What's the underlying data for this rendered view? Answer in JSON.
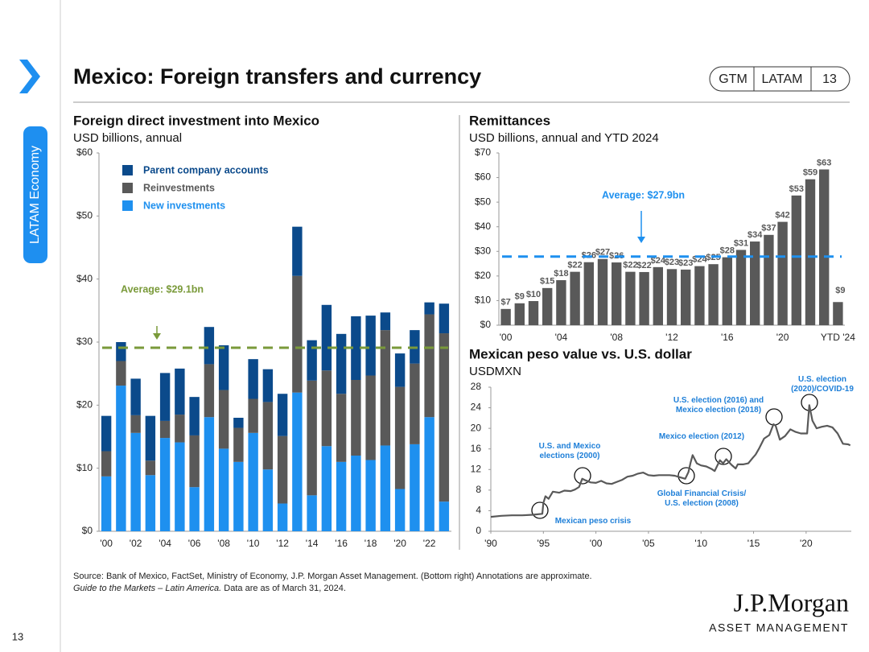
{
  "header": {
    "title": "Mexico: Foreign transfers and currency",
    "badges": [
      "GTM",
      "LATAM",
      "13"
    ]
  },
  "sidebar": {
    "section": "LATAM Economy",
    "page": "13"
  },
  "chart_data": [
    {
      "type": "bar",
      "stacked": true,
      "title": "Foreign direct investment into Mexico",
      "subtitle": "USD billions, annual",
      "categories": [
        "'00",
        null,
        "'02",
        null,
        "'04",
        null,
        "'06",
        null,
        "'08",
        null,
        "'10",
        null,
        "'12",
        null,
        "'14",
        null,
        "'16",
        null,
        "'18",
        null,
        "'20",
        null,
        "'22",
        null
      ],
      "series": [
        {
          "name": "New investments",
          "color": "#1e90ef",
          "values": [
            8.7,
            23.1,
            15.6,
            8.9,
            14.8,
            14.1,
            7.0,
            18.1,
            13.1,
            11.0,
            15.6,
            9.8,
            4.4,
            22.0,
            5.7,
            13.5,
            11.0,
            12.0,
            11.3,
            13.6,
            6.7,
            13.8,
            18.1,
            4.7
          ]
        },
        {
          "name": "Reinvestments",
          "color": "#595959",
          "values": [
            4.0,
            3.9,
            2.8,
            2.3,
            2.7,
            4.4,
            8.2,
            8.4,
            9.3,
            5.4,
            5.4,
            10.7,
            10.7,
            18.5,
            18.2,
            12.0,
            10.8,
            12.0,
            13.4,
            18.3,
            16.2,
            12.8,
            16.3,
            26.7
          ]
        },
        {
          "name": "Parent company accounts",
          "color": "#0b4a8b",
          "values": [
            5.6,
            3.0,
            5.8,
            7.1,
            7.6,
            7.3,
            6.1,
            5.9,
            7.1,
            1.6,
            6.3,
            5.2,
            6.7,
            7.8,
            6.4,
            10.4,
            9.5,
            10.1,
            9.5,
            2.8,
            5.3,
            5.3,
            1.9,
            4.7
          ]
        }
      ],
      "ylim": [
        0,
        60
      ],
      "yticks": [
        {
          "value": 0,
          "label": "$0"
        },
        {
          "value": 10,
          "label": "$10"
        },
        {
          "value": 20,
          "label": "$20"
        },
        {
          "value": 30,
          "label": "$30"
        },
        {
          "value": 40,
          "label": "$40"
        },
        {
          "value": 50,
          "label": "$50"
        },
        {
          "value": 60,
          "label": "$60"
        }
      ],
      "average": 29.1,
      "average_label": "Average: $29.1bn",
      "average_color": "#7a9a3a"
    },
    {
      "type": "bar",
      "title": "Remittances",
      "subtitle": "USD billions, annual and YTD 2024",
      "categories": [
        "'00",
        null,
        null,
        null,
        "'04",
        null,
        null,
        null,
        "'08",
        null,
        null,
        null,
        "'12",
        null,
        null,
        null,
        "'16",
        null,
        null,
        null,
        "'20",
        null,
        null,
        null,
        "YTD '24"
      ],
      "values": [
        6.6,
        8.9,
        9.8,
        15.1,
        18.3,
        21.7,
        25.6,
        26.9,
        25.5,
        21.7,
        21.6,
        23.6,
        22.8,
        22.6,
        24.0,
        24.8,
        27.6,
        30.6,
        34.0,
        36.7,
        42.0,
        52.7,
        59.3,
        63.3,
        9.4
      ],
      "value_labels": [
        "$7",
        "$9",
        "$10",
        "$15",
        "$18",
        "$22",
        "$26",
        "$27",
        "$26",
        "$22",
        "$22",
        "$24",
        "$23",
        "$23",
        "$24",
        "$25",
        "$28",
        "$31",
        "$34",
        "$37",
        "$42",
        "$53",
        "$59",
        "$63",
        "$9"
      ],
      "color": "#595959",
      "ylim": [
        0,
        70
      ],
      "yticks": [
        {
          "value": 0,
          "label": "$0"
        },
        {
          "value": 10,
          "label": "$10"
        },
        {
          "value": 20,
          "label": "$20"
        },
        {
          "value": 30,
          "label": "$30"
        },
        {
          "value": 40,
          "label": "$40"
        },
        {
          "value": 50,
          "label": "$50"
        },
        {
          "value": 60,
          "label": "$60"
        },
        {
          "value": 70,
          "label": "$70"
        }
      ],
      "average": 27.9,
      "average_label": "Average: $27.9bn",
      "average_color": "#1e90ef"
    },
    {
      "type": "line",
      "title": "Mexican peso value vs. U.S. dollar",
      "subtitle": "USDMXN",
      "x": [
        1990,
        1991,
        1992,
        1993,
        1994,
        1994.9,
        1995.0,
        1995.2,
        1995.5,
        1995.9,
        1996.5,
        1997,
        1997.6,
        1998.0,
        1998.4,
        1998.7,
        1999,
        1999.5,
        2000,
        2000.5,
        2001,
        2001.5,
        2002,
        2002.5,
        2003,
        2003.5,
        2004,
        2004.5,
        2005,
        2005.5,
        2006,
        2006.5,
        2007,
        2007.5,
        2008,
        2008.5,
        2008.8,
        2009.0,
        2009.2,
        2009.6,
        2010,
        2010.5,
        2011,
        2011.3,
        2011.8,
        2012.1,
        2012.4,
        2012.9,
        2013.3,
        2013.5,
        2014,
        2014.5,
        2014.9,
        2015.2,
        2015.5,
        2016,
        2016.5,
        2016.9,
        2017.1,
        2017.5,
        2018,
        2018.5,
        2019,
        2019.5,
        2020.1,
        2020.3,
        2020.6,
        2021,
        2021.5,
        2022,
        2022.5,
        2023,
        2023.5,
        2024,
        2024.2
      ],
      "values": [
        2.8,
        3.0,
        3.1,
        3.1,
        3.2,
        3.4,
        5.5,
        6.8,
        6.3,
        7.7,
        7.5,
        7.9,
        7.8,
        8.1,
        8.6,
        10.2,
        9.9,
        9.5,
        9.4,
        9.8,
        9.3,
        9.2,
        9.6,
        10.0,
        10.6,
        10.8,
        11.2,
        11.4,
        10.9,
        10.8,
        10.9,
        10.9,
        10.9,
        10.8,
        10.5,
        10.2,
        11.5,
        13.3,
        14.8,
        13.2,
        12.8,
        12.6,
        12.1,
        11.7,
        13.8,
        13.2,
        14.0,
        12.9,
        12.2,
        13.0,
        13.0,
        13.2,
        14.2,
        14.9,
        16.0,
        18.0,
        18.7,
        20.8,
        20.5,
        17.8,
        18.5,
        19.8,
        19.3,
        19.0,
        19.0,
        24.5,
        21.5,
        20.0,
        20.3,
        20.5,
        20.2,
        19.0,
        17.0,
        16.9,
        16.7
      ],
      "color": "#595959",
      "xlim": [
        1990,
        2024.3
      ],
      "xticks": [
        {
          "value": 1990,
          "label": "'90"
        },
        {
          "value": 1995,
          "label": "'95"
        },
        {
          "value": 2000,
          "label": "'00"
        },
        {
          "value": 2005,
          "label": "'05"
        },
        {
          "value": 2010,
          "label": "'10"
        },
        {
          "value": 2015,
          "label": "'15"
        },
        {
          "value": 2020,
          "label": "'20"
        }
      ],
      "ylim": [
        0,
        28
      ],
      "yticks": [
        0,
        4,
        8,
        12,
        16,
        20,
        24,
        28
      ],
      "annotations": [
        "Mexican peso crisis",
        "U.S. and Mexico elections (2000)",
        "Global Financial Crisis/ U.S. election (2008)",
        "Mexico election (2012)",
        "U.S. election (2016) and Mexico election (2018)",
        "U.S. election (2020)/COVID-19"
      ]
    }
  ],
  "footer": {
    "source": "Source: Bank of Mexico, FactSet, Ministry of Economy, J.P. Morgan Asset Management. (Bottom right) Annotations are approximate.",
    "guide": "Guide to the Markets – Latin America.",
    "note": " Data are as of March 31, 2024."
  },
  "logo": {
    "name": "J.P.Morgan",
    "sub": "ASSET MANAGEMENT"
  }
}
